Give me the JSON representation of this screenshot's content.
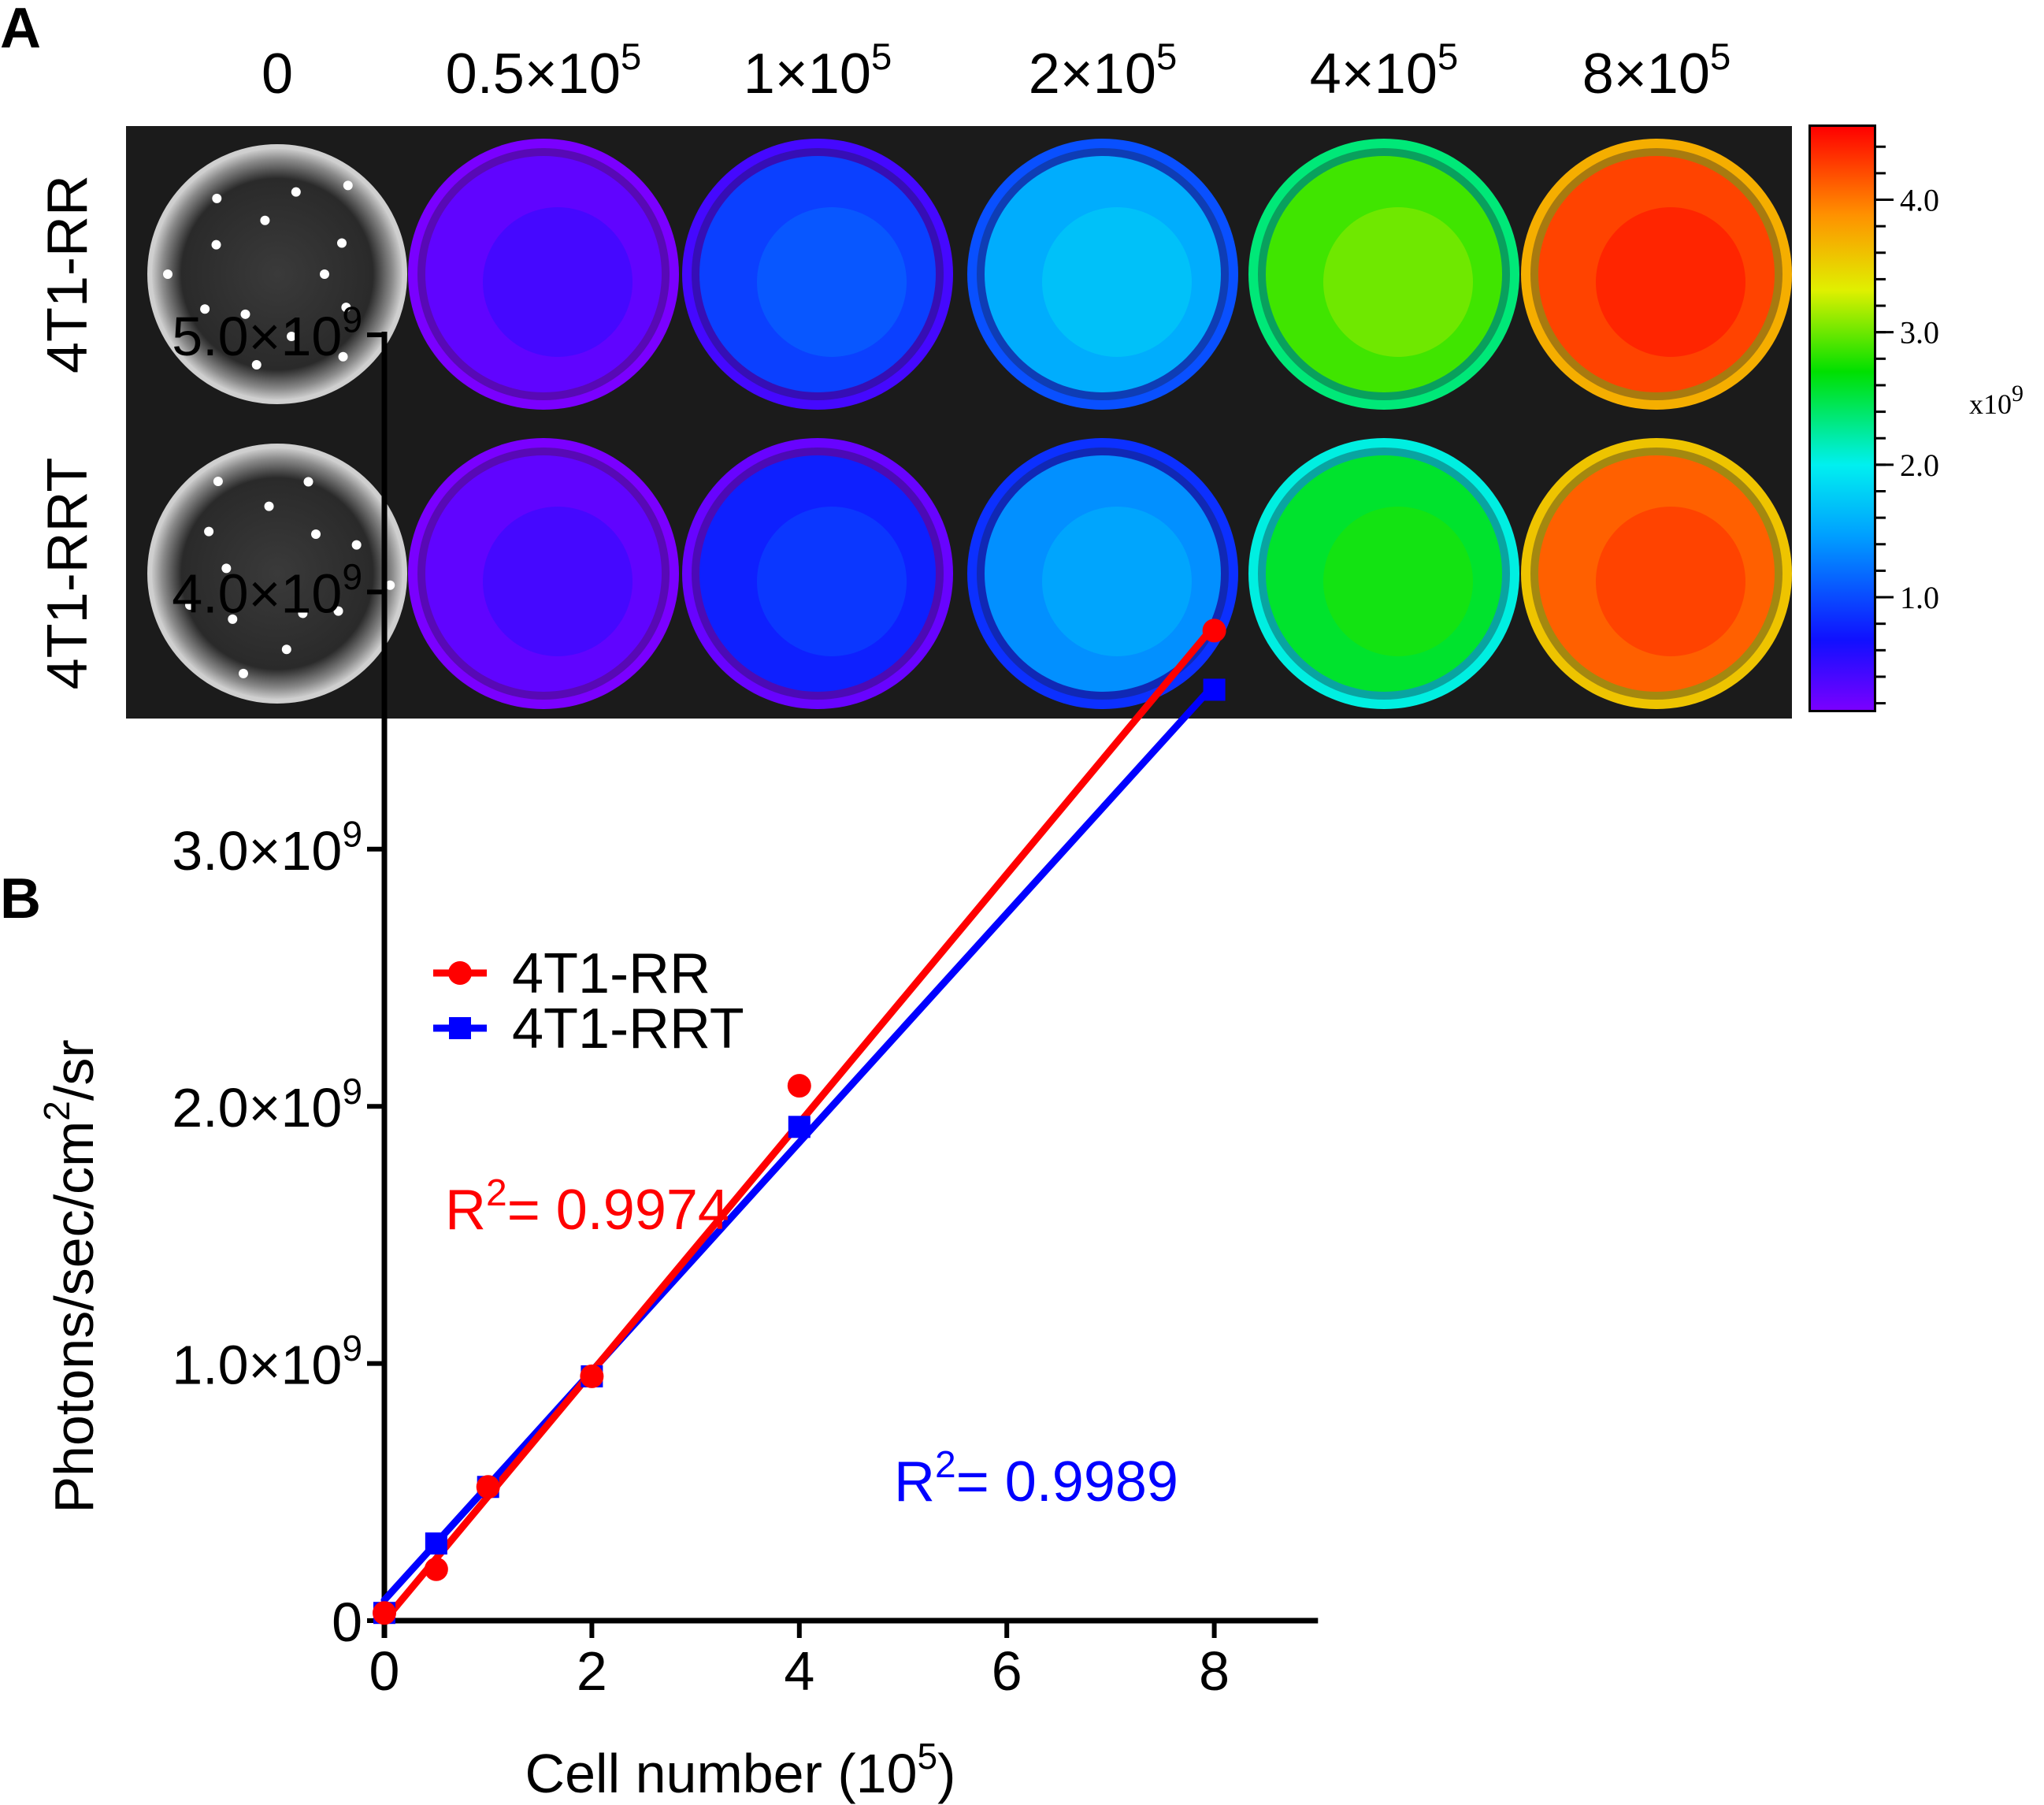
{
  "panel_a": {
    "label": "A",
    "column_labels": [
      {
        "base": "0",
        "exp": ""
      },
      {
        "base": "0.5×10",
        "exp": "5"
      },
      {
        "base": "1×10",
        "exp": "5"
      },
      {
        "base": "2×10",
        "exp": "5"
      },
      {
        "base": "4×10",
        "exp": "5"
      },
      {
        "base": "8×10",
        "exp": "5"
      }
    ],
    "row_labels": [
      "4T1-RR",
      "4T1-RRT"
    ],
    "well_intensity": [
      [
        0,
        0.03,
        0.18,
        0.32,
        0.62,
        0.93
      ],
      [
        0,
        0.03,
        0.14,
        0.28,
        0.55,
        0.9
      ]
    ],
    "colorbar": {
      "tick_labels": [
        "4.0",
        "3.0",
        "2.0",
        "1.0"
      ],
      "tick_values": [
        4.0,
        3.0,
        2.0,
        1.0
      ],
      "range": [
        0.15,
        4.55
      ],
      "unit_base": "x10",
      "unit_exp": "9"
    }
  },
  "panel_b": {
    "label": "B",
    "r2_red": {
      "base": "R",
      "exp": "2",
      "value": "= 0.9974"
    },
    "r2_blue": {
      "base": "R",
      "exp": "2",
      "value": "= 0.9989"
    }
  },
  "chart_data": {
    "type": "scatter",
    "title": "",
    "xlabel": "Cell number (10^5)",
    "xlabel_base": "Cell number (10",
    "xlabel_exp": "5",
    "xlabel_tail": ")",
    "ylabel_base": "Photons/sec/cm",
    "ylabel_exp": "2",
    "ylabel_tail": "/sr",
    "xlim": [
      0,
      9
    ],
    "ylim": [
      0,
      5.0
    ],
    "x_ticks": [
      0,
      2,
      4,
      6,
      8
    ],
    "x_tick_labels": [
      "0",
      "2",
      "4",
      "6",
      "8"
    ],
    "y_ticks": [
      0,
      1,
      2,
      3,
      4,
      5
    ],
    "y_tick_labels": [
      {
        "base": "0",
        "exp": ""
      },
      {
        "base": "1.0×10",
        "exp": "9"
      },
      {
        "base": "2.0×10",
        "exp": "9"
      },
      {
        "base": "3.0×10",
        "exp": "9"
      },
      {
        "base": "4.0×10",
        "exp": "9"
      },
      {
        "base": "5.0×10",
        "exp": "9"
      }
    ],
    "legend_position": "top-left",
    "series": [
      {
        "name": "4T1-RR",
        "color": "#ff0000",
        "marker": "circle",
        "x": [
          0,
          0.5,
          1,
          2,
          4,
          8
        ],
        "y": [
          0.03,
          0.2,
          0.52,
          0.95,
          2.08,
          3.85
        ],
        "fit": {
          "x": [
            0,
            8
          ],
          "y": [
            0.0,
            3.87
          ]
        }
      },
      {
        "name": "4T1-RRT",
        "color": "#0000ff",
        "marker": "square",
        "x": [
          0,
          0.5,
          1,
          2,
          4,
          8
        ],
        "y": [
          0.03,
          0.3,
          0.52,
          0.95,
          1.92,
          3.62
        ],
        "fit": {
          "x": [
            0,
            8
          ],
          "y": [
            0.08,
            3.64
          ]
        }
      }
    ]
  }
}
